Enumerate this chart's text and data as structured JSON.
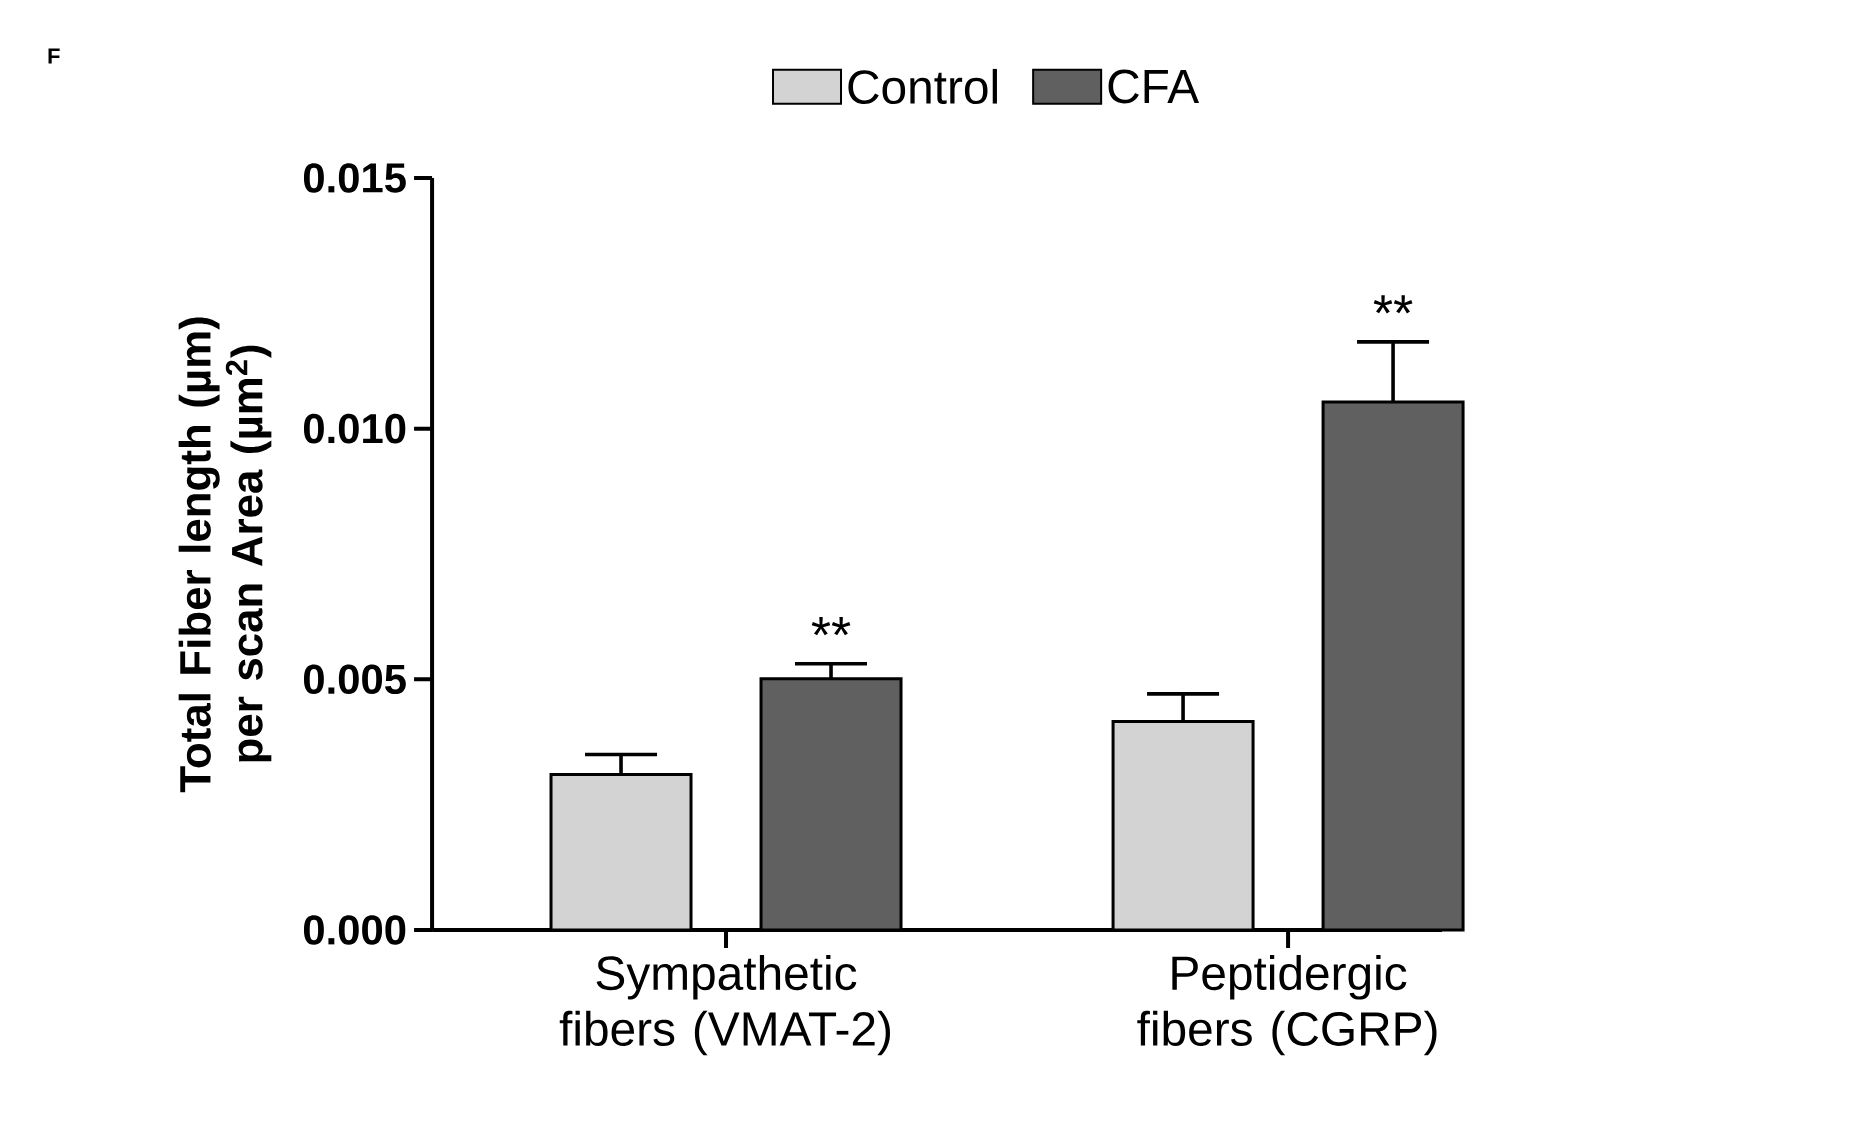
{
  "chart_data": {
    "type": "bar",
    "ylabel": "Total Fiber length (µm) per scan Area (µm$^{2}$)",
    "categories": [
      "Sympathetic fibers (VMAT-2)",
      "Peptidergic fibers (CGRP)"
    ],
    "series": [
      {
        "name": "Control",
        "color": "#d3d3d3",
        "values": [
          0.0031,
          0.00416
        ],
        "errors": [
          0.0004,
          0.00055
        ]
      },
      {
        "name": "CFA",
        "color": "#606060",
        "values": [
          0.00501,
          0.01053
        ],
        "errors": [
          0.0003,
          0.0012
        ]
      }
    ],
    "ylim": [
      0,
      0.015
    ],
    "yticks": [
      {
        "value": 0,
        "label": "0.000"
      },
      {
        "value": 0.005,
        "label": "0.005"
      },
      {
        "value": 0.01,
        "label": "0.010"
      },
      {
        "value": 0.015,
        "label": "0.015"
      }
    ],
    "legend": "top",
    "annotations": [
      "F",
      "**",
      "**"
    ]
  }
}
